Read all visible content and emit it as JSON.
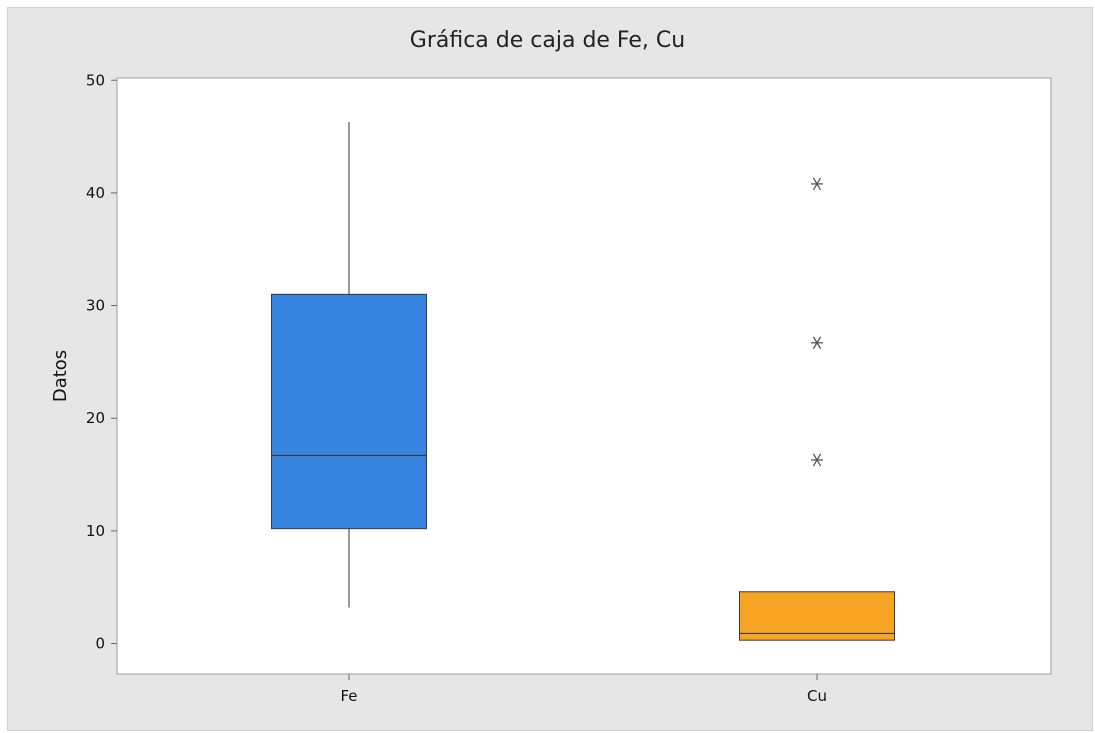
{
  "chart_data": {
    "type": "box",
    "title": "Gráfica de caja de Fe, Cu",
    "ylabel": "Datos",
    "xlabel": "",
    "ylim": [
      -2.7,
      50.2
    ],
    "yticks": [
      0,
      10,
      20,
      30,
      40,
      50
    ],
    "categories": [
      "Fe",
      "Cu"
    ],
    "boxes": [
      {
        "category": "Fe",
        "whisker_low": 3.2,
        "q1": 10.2,
        "median": 16.7,
        "q3": 31.0,
        "whisker_high": 46.3,
        "outliers": [],
        "color": "#3683e0"
      },
      {
        "category": "Cu",
        "whisker_low": 0.3,
        "q1": 0.3,
        "median": 0.9,
        "q3": 4.6,
        "whisker_high": 4.6,
        "outliers": [
          16.3,
          26.7,
          40.8
        ],
        "color": "#f7a324"
      }
    ],
    "grid": false,
    "colors": {
      "background": "#e6e6e6",
      "plot_area": "#ffffff",
      "axis": "#888888",
      "box_edge": "#3a3a3a"
    }
  }
}
